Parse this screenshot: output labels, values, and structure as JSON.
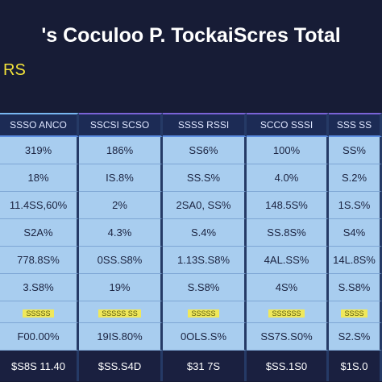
{
  "header": {
    "title": "'s Coculoo P. TockaiScres Total",
    "subtitle": "RS"
  },
  "table": {
    "columns": [
      "SSSO ANCO",
      "SSCSI SCSO",
      "SSSS RSSI",
      "SCCO SSSI",
      "SSS SS"
    ],
    "rows": [
      [
        "319%",
        "186%",
        "SS6%",
        "100%",
        "SS%"
      ],
      [
        "18%",
        "IS.8%",
        "SS.S%",
        "4.0%",
        "S.2%"
      ],
      [
        "11.4SS,60%",
        "2%",
        "2SA0, SS%",
        "148.5S%",
        "1S.S%"
      ],
      [
        "S2A%",
        "4.3%",
        "S.4%",
        "SS.8S%",
        "S4%"
      ],
      [
        "778.8S%",
        "0SS.S8%",
        "1.13S.S8%",
        "4AL.SS%",
        "14L.8S%"
      ],
      [
        "3.S8%",
        "19%",
        "S.S8%",
        "4S%",
        "S.S8%"
      ],
      [
        "SSSSS",
        "SSSSS SS",
        "SSSSS",
        "SSSSSS",
        "SSSS"
      ],
      [
        "F00.00%",
        "19IS.80%",
        "0OLS.S%",
        "SS7S.S0%",
        "S2.S%"
      ]
    ],
    "footer": [
      "$S8S 11.40",
      "$SS.S4D",
      "$31 7S",
      "$SS.1S0",
      "$1S.0"
    ]
  }
}
